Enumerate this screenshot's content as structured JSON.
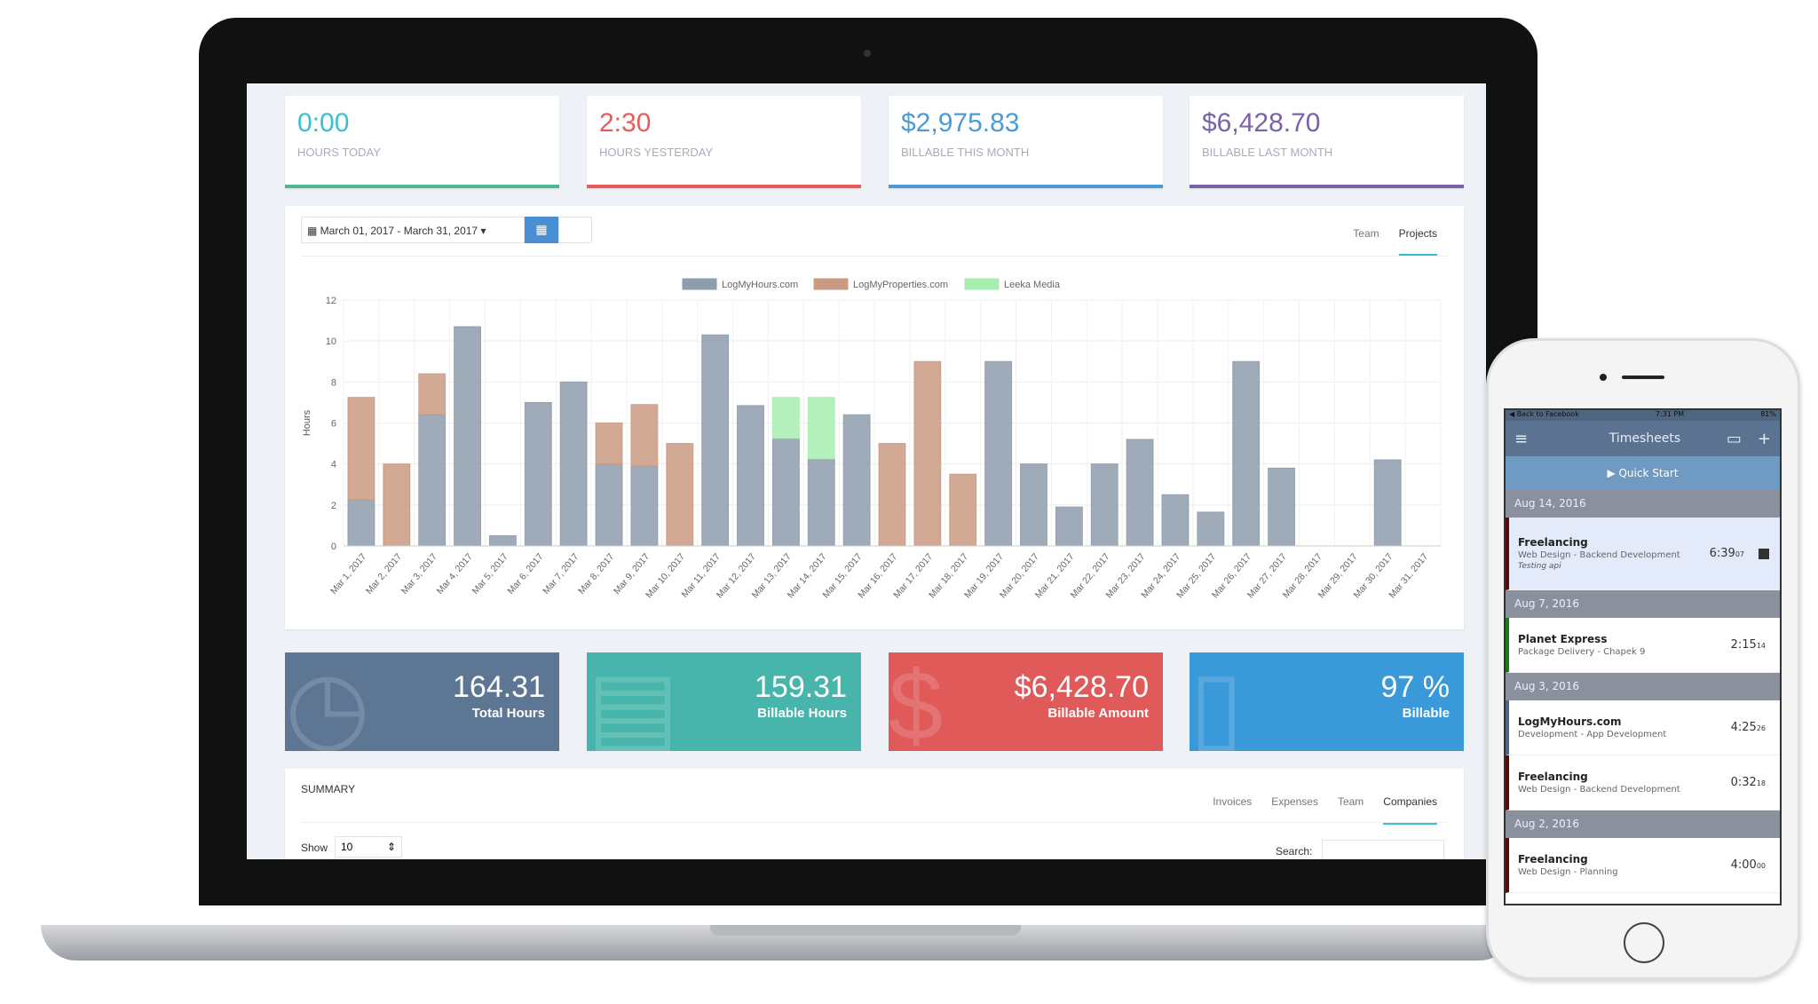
{
  "kpis": [
    {
      "value": "0:00",
      "label": "HOURS TODAY",
      "color": "#3bbfcf",
      "bar": "#4cb98f"
    },
    {
      "value": "2:30",
      "label": "HOURS YESTERDAY",
      "color": "#e85c5c",
      "bar": "#e85c5c"
    },
    {
      "value": "$2,975.83",
      "label": "BILLABLE THIS MONTH",
      "color": "#4b9bd8",
      "bar": "#4b9bd8"
    },
    {
      "value": "$6,428.70",
      "label": "BILLABLE LAST MONTH",
      "color": "#7a62a8",
      "bar": "#7a62a8"
    }
  ],
  "chart_panel": {
    "date_range": "March 01, 2017 - March 31, 2017 ▾",
    "calendar_icon": "calendar-icon",
    "grid_icon": "grid-icon",
    "tabs": [
      "Team",
      "Projects"
    ],
    "active_tab": "Projects"
  },
  "chart_data": {
    "type": "bar",
    "stacked": true,
    "ylabel": "Hours",
    "ylim": [
      0,
      12
    ],
    "yticks": [
      0,
      2,
      4,
      6,
      8,
      10,
      12
    ],
    "grid": true,
    "legend": "top",
    "categories": [
      "Mar 1, 2017",
      "Mar 2, 2017",
      "Mar 3, 2017",
      "Mar 4, 2017",
      "Mar 5, 2017",
      "Mar 6, 2017",
      "Mar 7, 2017",
      "Mar 8, 2017",
      "Mar 9, 2017",
      "Mar 10, 2017",
      "Mar 11, 2017",
      "Mar 12, 2017",
      "Mar 13, 2017",
      "Mar 14, 2017",
      "Mar 15, 2017",
      "Mar 16, 2017",
      "Mar 17, 2017",
      "Mar 18, 2017",
      "Mar 19, 2017",
      "Mar 20, 2017",
      "Mar 21, 2017",
      "Mar 22, 2017",
      "Mar 23, 2017",
      "Mar 24, 2017",
      "Mar 25, 2017",
      "Mar 26, 2017",
      "Mar 27, 2017",
      "Mar 28, 2017",
      "Mar 29, 2017",
      "Mar 30, 2017",
      "Mar 31, 2017"
    ],
    "series": [
      {
        "name": "LogMyHours.com",
        "color": "#8e9cab",
        "values": [
          2.25,
          0,
          6.4,
          10.7,
          0.5,
          7.0,
          8.0,
          4.0,
          3.9,
          0,
          10.3,
          6.85,
          5.25,
          4.25,
          6.4,
          0,
          0,
          0,
          9.0,
          4.0,
          1.9,
          4.0,
          5.2,
          2.5,
          1.65,
          9.0,
          3.8,
          0,
          0,
          4.2,
          0
        ]
      },
      {
        "name": "LogMyProperties.com",
        "color": "#c99a82",
        "values": [
          5.0,
          4.0,
          2.0,
          0,
          0,
          0,
          0,
          2.0,
          3.0,
          5.0,
          0,
          0,
          0,
          0,
          0,
          5.0,
          9.0,
          3.5,
          0,
          0,
          0,
          0,
          0,
          0,
          0,
          0,
          0,
          0,
          0,
          0,
          0
        ]
      },
      {
        "name": "Leeka Media",
        "color": "#a8eeb0",
        "values": [
          0,
          0,
          0,
          0,
          0,
          0,
          0,
          0,
          0,
          0,
          0,
          0,
          2.0,
          3.0,
          0,
          0,
          0,
          0,
          0,
          0,
          0,
          0,
          0,
          0,
          0,
          0,
          0,
          0,
          0,
          0,
          0
        ]
      }
    ]
  },
  "tiles": [
    {
      "value": "164.31",
      "label": "Total Hours",
      "color": "#5d7693",
      "icon": "clock-icon",
      "glyph": "◷"
    },
    {
      "value": "159.31",
      "label": "Billable Hours",
      "color": "#47b5ab",
      "icon": "book-icon",
      "glyph": "▤"
    },
    {
      "value": "$6,428.70",
      "label": "Billable Amount",
      "color": "#e05a5a",
      "icon": "dollar-icon",
      "glyph": "$"
    },
    {
      "value": "97 %",
      "label": "Billable",
      "color": "#3a99d9",
      "icon": "document-icon",
      "glyph": "▯"
    }
  ],
  "summary": {
    "title": "SUMMARY",
    "tabs": [
      "Invoices",
      "Expenses",
      "Team",
      "Companies"
    ],
    "active_tab": "Companies",
    "show_label": "Show",
    "show_value": "10",
    "search_label": "Search:"
  },
  "phone": {
    "status": {
      "back": "◀ Back to Facebook",
      "time": "7:31 PM",
      "battery": "81%"
    },
    "title": "Timesheets",
    "quick_start": "▶ Quick Start",
    "groups": [
      {
        "date": "Aug 14, 2016",
        "entries": [
          {
            "title": "Freelancing",
            "sub": "Web Design - Backend Development",
            "note": "Testing api",
            "time": "6:39",
            "sec": "07",
            "running": true,
            "color": "#5a0a0a"
          }
        ]
      },
      {
        "date": "Aug 7, 2016",
        "entries": [
          {
            "title": "Planet Express",
            "sub": "Package Delivery - Chapek 9",
            "time": "2:15",
            "sec": "14",
            "color": "#1a7a1a"
          }
        ]
      },
      {
        "date": "Aug 3, 2016",
        "entries": [
          {
            "title": "LogMyHours.com",
            "sub": "Development - App Development",
            "time": "4:25",
            "sec": "26",
            "color": "#4e6680"
          },
          {
            "title": "Freelancing",
            "sub": "Web Design - Backend Development",
            "time": "0:32",
            "sec": "18",
            "color": "#5a0a0a"
          }
        ]
      },
      {
        "date": "Aug 2, 2016",
        "entries": [
          {
            "title": "Freelancing",
            "sub": "Web Design - Planning",
            "time": "4:00",
            "sec": "00",
            "color": "#5a0a0a"
          }
        ]
      }
    ]
  }
}
